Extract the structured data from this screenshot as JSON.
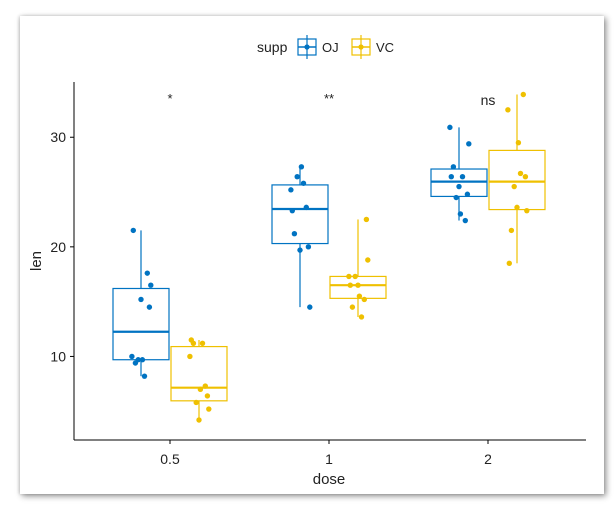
{
  "chart_data": {
    "type": "boxplot",
    "xlabel": "dose",
    "ylabel": "len",
    "categories": [
      "0.5",
      "1",
      "2"
    ],
    "y_ticks": [
      10,
      20,
      30
    ],
    "ylim": [
      2.5,
      36
    ],
    "legend": {
      "title": "supp",
      "position": "top",
      "entries": [
        "OJ",
        "VC"
      ]
    },
    "colors": {
      "OJ": "#0073C2",
      "VC": "#EFC000"
    },
    "annotations": [
      "*",
      "**",
      "ns"
    ],
    "series": [
      {
        "name": "OJ",
        "boxes": [
          {
            "category": "0.5",
            "whisker_low": 8.2,
            "q1": 9.7,
            "median": 12.25,
            "q3": 16.2,
            "whisker_high": 21.5
          },
          {
            "category": "1",
            "whisker_low": 14.5,
            "q1": 20.3,
            "median": 23.45,
            "q3": 25.65,
            "whisker_high": 27.3
          },
          {
            "category": "2",
            "whisker_low": 22.4,
            "q1": 24.6,
            "median": 25.95,
            "q3": 27.1,
            "whisker_high": 30.9
          }
        ],
        "points": [
          [
            15.2,
            21.5,
            17.6,
            9.7,
            14.5,
            10.0,
            8.2,
            9.4,
            16.5,
            9.7
          ],
          [
            19.7,
            23.3,
            23.6,
            26.4,
            20.0,
            25.2,
            25.8,
            21.2,
            14.5,
            27.3
          ],
          [
            25.5,
            26.4,
            22.4,
            24.5,
            24.8,
            30.9,
            26.4,
            27.3,
            29.4,
            23.0
          ]
        ]
      },
      {
        "name": "VC",
        "boxes": [
          {
            "category": "0.5",
            "whisker_low": 4.2,
            "q1": 5.95,
            "median": 7.15,
            "q3": 10.9,
            "whisker_high": 11.5
          },
          {
            "category": "1",
            "whisker_low": 13.6,
            "q1": 15.3,
            "median": 16.5,
            "q3": 17.3,
            "whisker_high": 22.5
          },
          {
            "category": "2",
            "whisker_low": 18.5,
            "q1": 23.4,
            "median": 25.95,
            "q3": 28.8,
            "whisker_high": 33.9
          }
        ],
        "points": [
          [
            4.2,
            11.5,
            7.3,
            5.8,
            6.4,
            10.0,
            11.2,
            11.2,
            5.2,
            7.0
          ],
          [
            16.5,
            16.5,
            15.2,
            17.3,
            22.5,
            17.3,
            13.6,
            14.5,
            18.8,
            15.5
          ],
          [
            23.6,
            18.5,
            33.9,
            25.5,
            26.4,
            32.5,
            26.7,
            21.5,
            23.3,
            29.5
          ]
        ]
      }
    ]
  }
}
